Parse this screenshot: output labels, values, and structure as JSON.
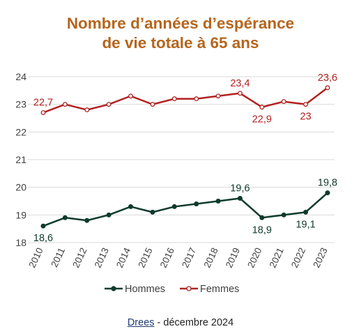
{
  "colors": {
    "title": "#b5651d",
    "hommes": "#0e3b2e",
    "femmes": "#b22222",
    "grid": "#d9d9d9",
    "axis_text": "#404040"
  },
  "title_lines": [
    "Nombre d’années d’espérance",
    "de vie totale à 65 ans"
  ],
  "source": {
    "link_text": "Drees",
    "rest_text": " - décembre 2024"
  },
  "chart_data": {
    "type": "line",
    "title": "Nombre d’années d’espérance de vie totale à 65 ans",
    "x": [
      "2010",
      "2011",
      "2012",
      "2013",
      "2014",
      "2015",
      "2016",
      "2017",
      "2018",
      "2019",
      "2020",
      "2021",
      "2022",
      "2023"
    ],
    "ylim": [
      18,
      24
    ],
    "yticks": [
      "18",
      "19",
      "20",
      "21",
      "22",
      "23",
      "24"
    ],
    "grid": true,
    "legend_placement": "bottom",
    "series": [
      {
        "name": "Hommes",
        "values": [
          18.6,
          18.9,
          18.8,
          19.0,
          19.3,
          19.1,
          19.3,
          19.4,
          19.5,
          19.6,
          18.9,
          19.0,
          19.1,
          19.8
        ],
        "labels": [
          {
            "index": 0,
            "text": "18,6",
            "pos": "below"
          },
          {
            "index": 9,
            "text": "19,6",
            "pos": "above"
          },
          {
            "index": 10,
            "text": "18,9",
            "pos": "below"
          },
          {
            "index": 12,
            "text": "19,1",
            "pos": "below"
          },
          {
            "index": 13,
            "text": "19,8",
            "pos": "above"
          }
        ]
      },
      {
        "name": "Femmes",
        "values": [
          22.7,
          23.0,
          22.8,
          23.0,
          23.3,
          23.0,
          23.2,
          23.2,
          23.3,
          23.4,
          22.9,
          23.1,
          23.0,
          23.6
        ],
        "labels": [
          {
            "index": 0,
            "text": "22,7",
            "pos": "above"
          },
          {
            "index": 9,
            "text": "23,4",
            "pos": "above"
          },
          {
            "index": 10,
            "text": "22,9",
            "pos": "below"
          },
          {
            "index": 12,
            "text": "23",
            "pos": "below"
          },
          {
            "index": 13,
            "text": "23,6",
            "pos": "above"
          }
        ]
      }
    ]
  }
}
